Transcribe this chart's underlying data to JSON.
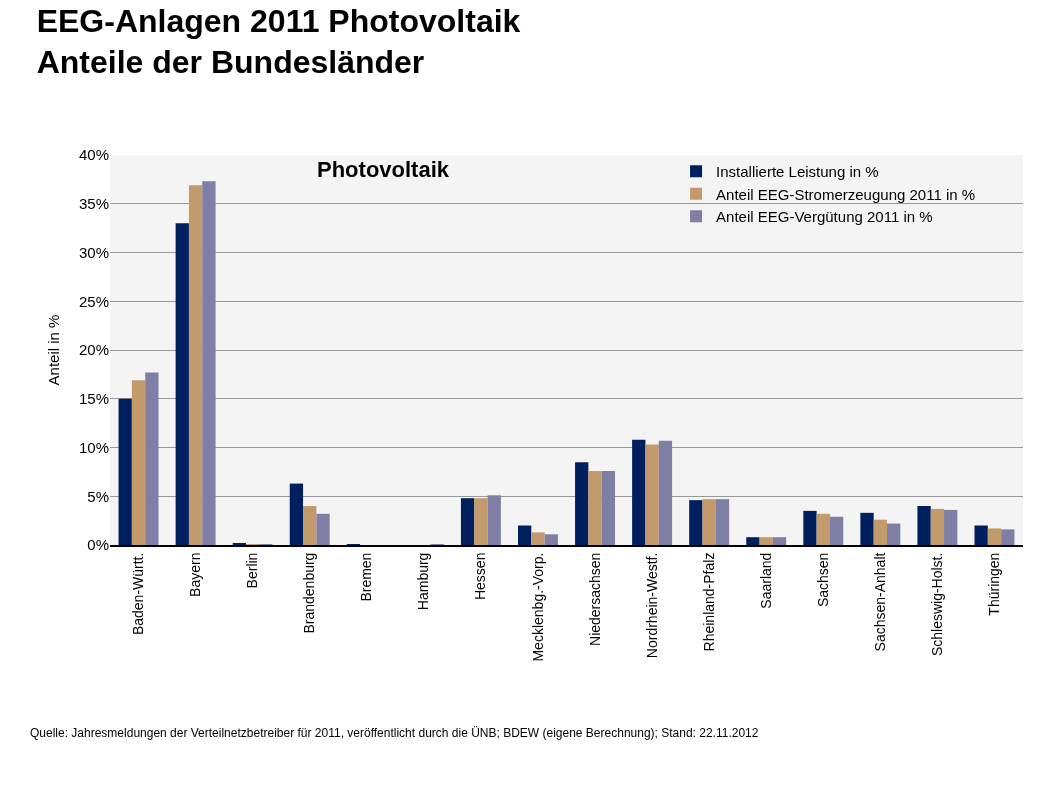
{
  "chart_data": {
    "type": "bar",
    "title": "EEG-Anlagen 2011 Photovoltaik\nAnteile der Bundesländer",
    "subtitle": "Photovoltaik",
    "ylabel": "Anteil in %",
    "categories": [
      "Baden-Württ.",
      "Bayern",
      "Berlin",
      "Brandenburg",
      "Bremen",
      "Hamburg",
      "Hessen",
      "Mecklenbg.-Vorp.",
      "Niedersachsen",
      "Nordrhein-Westf.",
      "Rheinland-Pfalz",
      "Saarland",
      "Sachsen",
      "Sachsen-Anhalt",
      "Schleswig-Holst.",
      "Thüringen"
    ],
    "series": [
      {
        "name": "Installierte Leistung in %",
        "color": "#001f5f",
        "values": [
          15.0,
          33.0,
          0.2,
          6.3,
          0.1,
          0.0,
          4.8,
          2.0,
          8.5,
          10.8,
          4.6,
          0.8,
          3.5,
          3.3,
          4.0,
          2.0
        ]
      },
      {
        "name": "Anteil EEG-Stromerzeugung 2011 in %",
        "color": "#c39a6b",
        "values": [
          16.9,
          36.9,
          0.1,
          4.0,
          0.0,
          0.0,
          4.8,
          1.3,
          7.6,
          10.3,
          4.7,
          0.8,
          3.2,
          2.6,
          3.7,
          1.7
        ]
      },
      {
        "name": "Anteil EEG-Vergütung 2011 in %",
        "color": "#7f7fa5",
        "values": [
          17.7,
          37.3,
          0.1,
          3.2,
          0.0,
          0.1,
          5.1,
          1.1,
          7.6,
          10.7,
          4.7,
          0.8,
          2.9,
          2.2,
          3.6,
          1.6
        ]
      }
    ],
    "ylim": [
      0,
      40
    ],
    "yticks": [
      {
        "value": 0,
        "label": "0%"
      },
      {
        "value": 5,
        "label": "5%"
      },
      {
        "value": 10,
        "label": "10%"
      },
      {
        "value": 15,
        "label": "15%"
      },
      {
        "value": 20,
        "label": "20%"
      },
      {
        "value": 25,
        "label": "25%"
      },
      {
        "value": 30,
        "label": "30%"
      },
      {
        "value": 35,
        "label": "35%"
      },
      {
        "value": 40,
        "label": "40%"
      }
    ],
    "grid": "y",
    "legend": "top right",
    "annotations": [
      "Quelle: Jahresmeldungen der Verteilnetzbetreiber für 2011, veröffentlicht durch die ÜNB; BDEW (eigene Berechnung); Stand: 22.11.2012"
    ]
  }
}
